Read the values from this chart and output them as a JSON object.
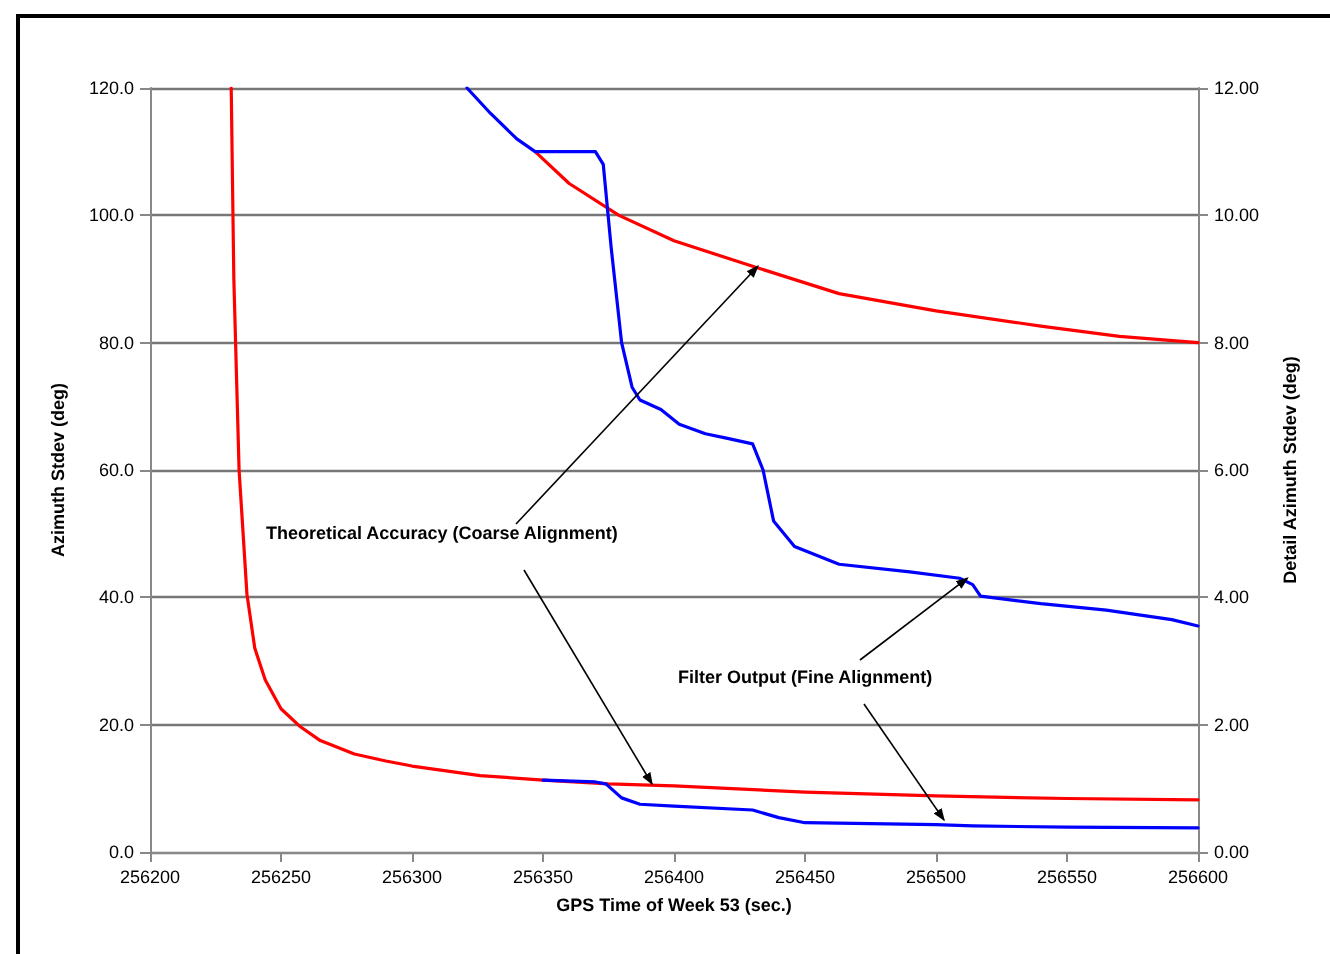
{
  "chart_data": {
    "type": "line",
    "xlabel": "GPS Time of Week 53 (sec.)",
    "ylabel": "Azimuth Stdev (deg)",
    "y2label": "Detail Azimuth Stdev (deg)",
    "annotations": [
      {
        "text": "Theoretical Accuracy (Coarse Alignment)",
        "x": 256432,
        "y": 92
      },
      {
        "text": "Filter Output (Fine Alignment)",
        "x": 256512,
        "y": 43
      }
    ],
    "series": [
      {
        "color": "#ff0000",
        "x": [
          256231,
          256232,
          256234,
          256237,
          256240,
          256244,
          256250,
          256257,
          256265,
          256278,
          256290,
          256300,
          256326,
          256350,
          256375,
          256400,
          256450,
          256500,
          256550,
          256600
        ],
        "values": [
          120,
          90,
          60,
          40.5,
          32,
          27,
          22.5,
          19.8,
          17.5,
          15.4,
          14.3,
          13.5,
          12,
          11.3,
          10.7,
          10.4,
          9.4,
          8.8,
          8.4,
          8.2
        ]
      },
      {
        "color": "#0000ff",
        "x": [
          256350,
          256370,
          256374,
          256380,
          256387,
          256400,
          256430,
          256440,
          256450,
          256500,
          256514,
          256550,
          256600
        ],
        "values": [
          11.3,
          11.0,
          10.7,
          8.5,
          7.5,
          7.2,
          6.6,
          5.4,
          4.6,
          4.3,
          4.1,
          3.9,
          3.8
        ]
      },
      {
        "color": "#ff0000",
        "axis": "y2",
        "x": [
          256347,
          256360,
          256379,
          256400,
          256430,
          256463,
          256500,
          256540,
          256570,
          256600
        ],
        "values": [
          11.0,
          10.5,
          10.0,
          9.6,
          9.2,
          8.77,
          8.5,
          8.26,
          8.1,
          8.0
        ]
      },
      {
        "color": "#0000ff",
        "axis": "y2",
        "x": [
          256321,
          256330,
          256340,
          256347,
          256360,
          256370,
          256373,
          256376,
          256380,
          256384,
          256387,
          256395,
          256402,
          256412,
          256420,
          256430,
          256434,
          256438,
          256446,
          256463,
          256490,
          256509,
          256514,
          256517,
          256540,
          256565,
          256590,
          256600
        ],
        "values": [
          12.0,
          11.6,
          11.2,
          11.0,
          11.0,
          11.0,
          10.8,
          9.5,
          8.0,
          7.3,
          7.1,
          6.95,
          6.72,
          6.57,
          6.5,
          6.41,
          6.0,
          5.2,
          4.8,
          4.52,
          4.4,
          4.3,
          4.2,
          4.02,
          3.9,
          3.8,
          3.65,
          3.55
        ]
      }
    ],
    "xlim": [
      256200,
      256600
    ],
    "xticks": [
      256200,
      256250,
      256300,
      256350,
      256400,
      256450,
      256500,
      256550,
      256600
    ],
    "ylim": [
      0,
      120
    ],
    "yticks": [
      {
        "value": 0,
        "label": "0.0"
      },
      {
        "value": 20,
        "label": "20.0"
      },
      {
        "value": 40,
        "label": "40.0"
      },
      {
        "value": 60,
        "label": "60.0"
      },
      {
        "value": 80,
        "label": "80.0"
      },
      {
        "value": 100,
        "label": "100.0"
      },
      {
        "value": 120,
        "label": "120.0"
      }
    ],
    "y2lim": [
      0,
      12
    ],
    "y2ticks": [
      {
        "value": 0,
        "label": "0.00"
      },
      {
        "value": 2,
        "label": "2.00"
      },
      {
        "value": 4,
        "label": "4.00"
      },
      {
        "value": 6,
        "label": "6.00"
      },
      {
        "value": 8,
        "label": "8.00"
      },
      {
        "value": 10,
        "label": "10.00"
      },
      {
        "value": 12,
        "label": "12.00"
      }
    ],
    "grid": "y",
    "marker": "none",
    "line_style": "solid"
  }
}
